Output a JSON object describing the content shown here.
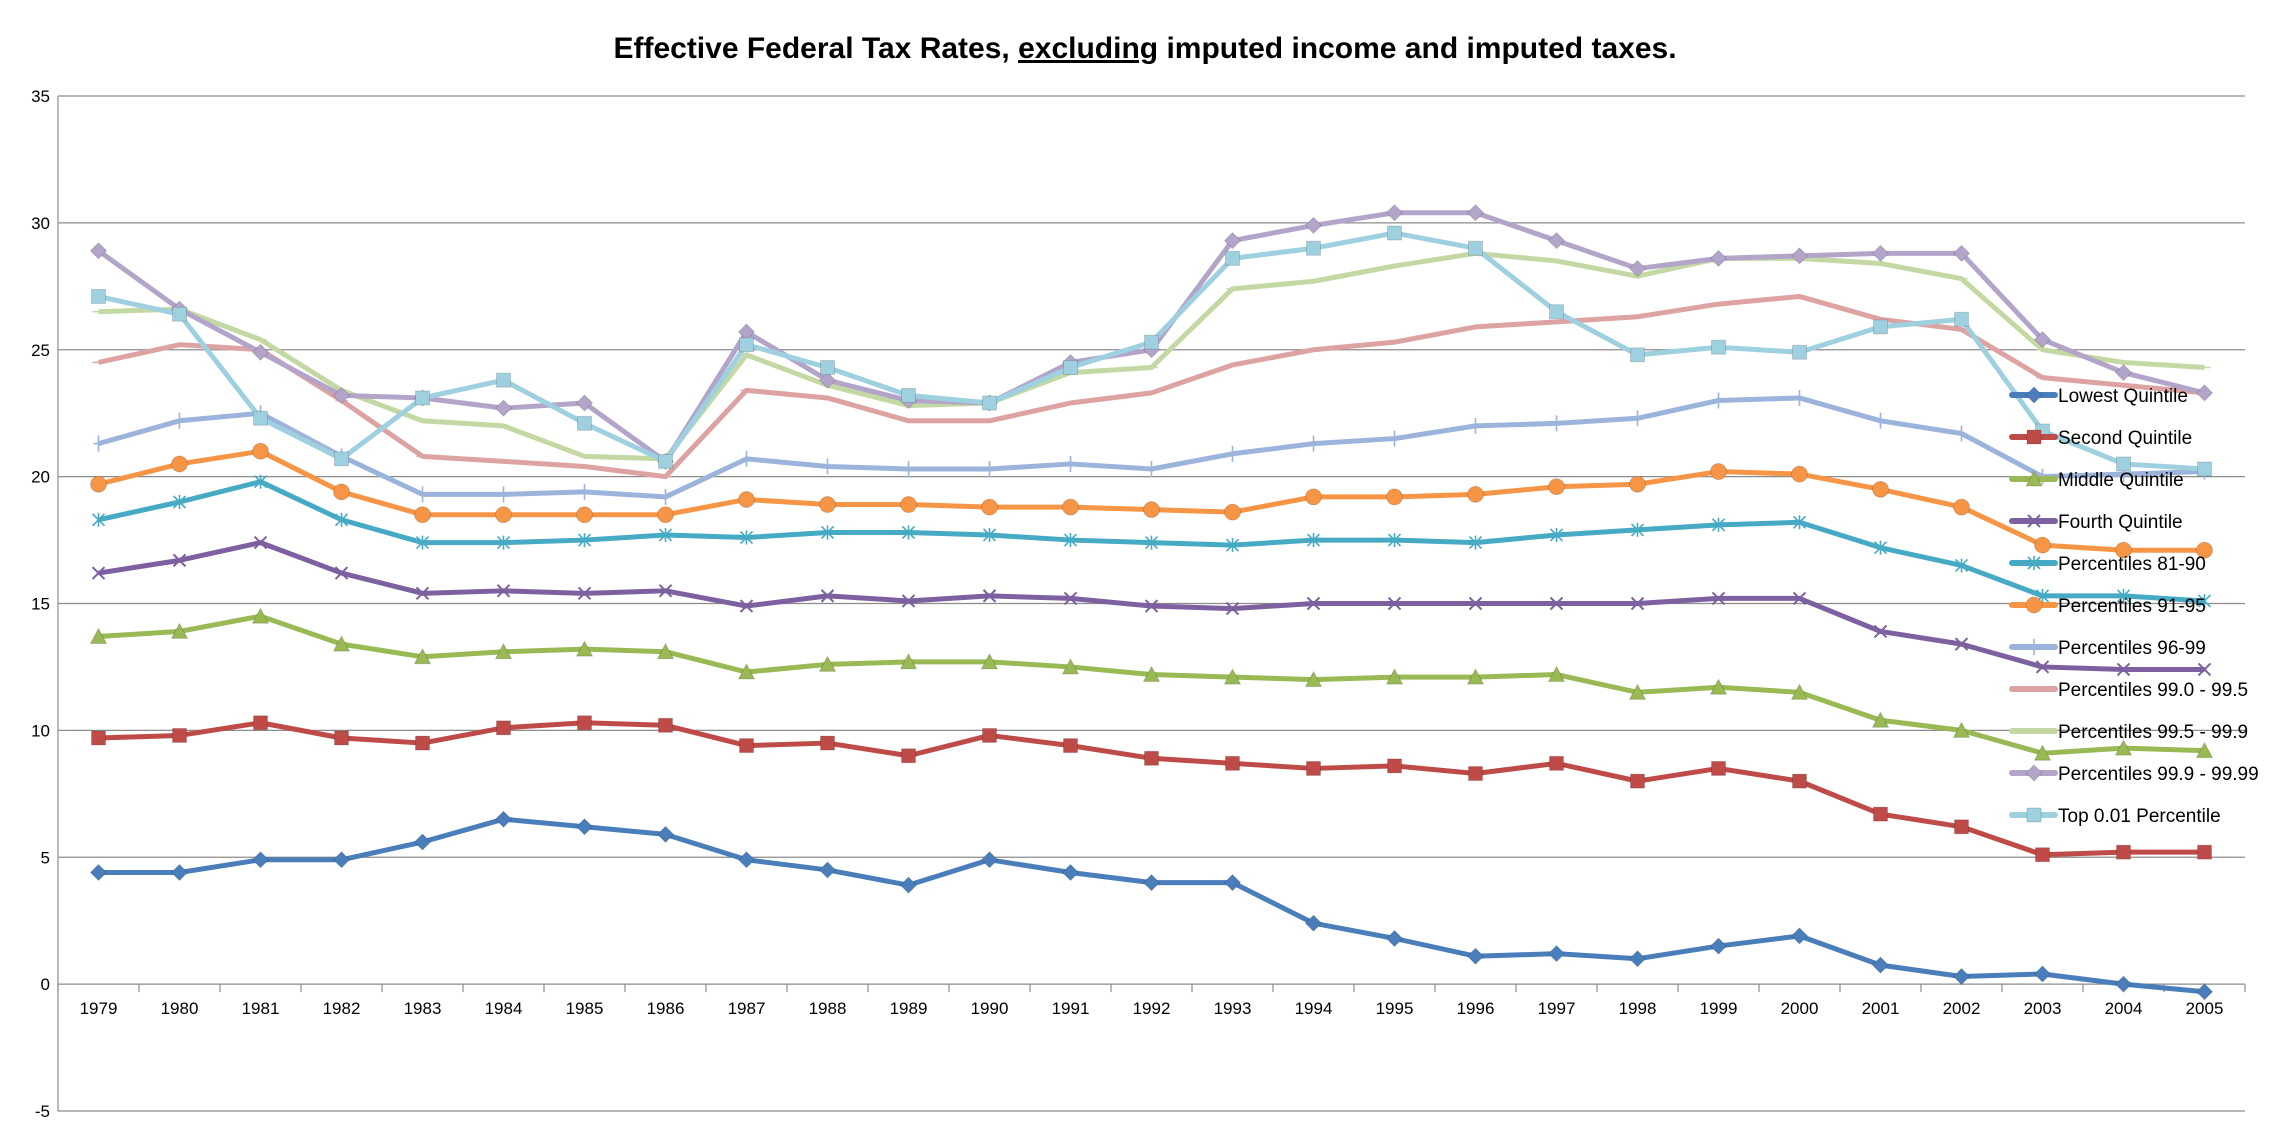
{
  "chart_data": {
    "type": "line",
    "title_parts": [
      "Effective Federal Tax Rates, ",
      "excluding",
      " imputed income and imputed taxes."
    ],
    "title_underlined_part": "excluding",
    "xlabel": "",
    "ylabel": "",
    "ylim": [
      -5,
      35
    ],
    "yticks": [
      "-5",
      "0",
      "5",
      "10",
      "15",
      "20",
      "25",
      "30",
      "35"
    ],
    "grid": "horizontal",
    "legend_position": "right",
    "categories": [
      "1979",
      "1980",
      "1981",
      "1982",
      "1983",
      "1984",
      "1985",
      "1986",
      "1987",
      "1988",
      "1989",
      "1990",
      "1991",
      "1992",
      "1993",
      "1994",
      "1995",
      "1996",
      "1997",
      "1998",
      "1999",
      "2000",
      "2001",
      "2002",
      "2003",
      "2004",
      "2005"
    ],
    "series": [
      {
        "name": "Lowest Quintile",
        "color": "#4a7ebb",
        "marker": "diamond",
        "values": [
          4.4,
          4.4,
          4.9,
          4.9,
          5.6,
          6.5,
          6.2,
          5.9,
          4.9,
          4.5,
          3.9,
          4.9,
          4.4,
          4.0,
          4.0,
          2.4,
          1.8,
          1.1,
          1.2,
          1.0,
          1.5,
          1.9,
          0.75,
          0.3,
          0.4,
          0.0,
          -0.3
        ]
      },
      {
        "name": "Second Quintile",
        "color": "#be4b48",
        "marker": "square",
        "values": [
          9.7,
          9.8,
          10.3,
          9.7,
          9.5,
          10.1,
          10.3,
          10.2,
          9.4,
          9.5,
          9.0,
          9.8,
          9.4,
          8.9,
          8.7,
          8.5,
          8.6,
          8.3,
          8.7,
          8.0,
          8.5,
          8.0,
          6.7,
          6.2,
          5.1,
          5.2,
          5.2
        ]
      },
      {
        "name": "Middle Quintile",
        "color": "#98b954",
        "marker": "triangle",
        "values": [
          13.7,
          13.9,
          14.5,
          13.4,
          12.9,
          13.1,
          13.2,
          13.1,
          12.3,
          12.6,
          12.7,
          12.7,
          12.5,
          12.2,
          12.1,
          12.0,
          12.1,
          12.1,
          12.2,
          11.5,
          11.7,
          11.5,
          10.4,
          10.0,
          9.1,
          9.3,
          9.2
        ]
      },
      {
        "name": "Fourth Quintile",
        "color": "#7d60a0",
        "marker": "x",
        "values": [
          16.2,
          16.7,
          17.4,
          16.2,
          15.4,
          15.5,
          15.4,
          15.5,
          14.9,
          15.3,
          15.1,
          15.3,
          15.2,
          14.9,
          14.8,
          15.0,
          15.0,
          15.0,
          15.0,
          15.0,
          15.2,
          15.2,
          13.9,
          13.4,
          12.5,
          12.4,
          12.4
        ]
      },
      {
        "name": "Percentiles 81-90",
        "color": "#46aac5",
        "marker": "asterisk",
        "values": [
          18.3,
          19.0,
          19.8,
          18.3,
          17.4,
          17.4,
          17.5,
          17.7,
          17.6,
          17.8,
          17.8,
          17.7,
          17.5,
          17.4,
          17.3,
          17.5,
          17.5,
          17.4,
          17.7,
          17.9,
          18.1,
          18.2,
          17.2,
          16.5,
          15.3,
          15.3,
          15.1
        ]
      },
      {
        "name": "Percentiles 91-95",
        "color": "#f69546",
        "marker": "circle",
        "values": [
          19.7,
          20.5,
          21.0,
          19.4,
          18.5,
          18.5,
          18.5,
          18.5,
          19.1,
          18.9,
          18.9,
          18.8,
          18.8,
          18.7,
          18.6,
          19.2,
          19.2,
          19.3,
          19.6,
          19.7,
          20.2,
          20.1,
          19.5,
          18.8,
          17.3,
          17.1,
          17.1
        ]
      },
      {
        "name": "Percentiles 96-99",
        "color": "#9cb4db",
        "marker": "plus",
        "values": [
          21.3,
          22.2,
          22.5,
          20.8,
          19.3,
          19.3,
          19.4,
          19.2,
          20.7,
          20.4,
          20.3,
          20.3,
          20.5,
          20.3,
          20.9,
          21.3,
          21.5,
          22.0,
          22.1,
          22.3,
          23.0,
          23.1,
          22.2,
          21.7,
          20.0,
          20.1,
          20.2
        ]
      },
      {
        "name": "Percentiles 99.0 - 99.5",
        "color": "#dda3a2",
        "marker": "dash",
        "values": [
          24.5,
          25.2,
          25.0,
          23.0,
          20.8,
          20.6,
          20.4,
          20.0,
          23.4,
          23.1,
          22.2,
          22.2,
          22.9,
          23.3,
          24.4,
          25.0,
          25.3,
          25.9,
          26.1,
          26.3,
          26.8,
          27.1,
          26.2,
          25.8,
          23.9,
          23.6,
          23.3
        ]
      },
      {
        "name": "Percentiles 99.5 - 99.9",
        "color": "#c4d8a3",
        "marker": "dash",
        "values": [
          26.5,
          26.6,
          25.4,
          23.4,
          22.2,
          22.0,
          20.8,
          20.7,
          24.8,
          23.6,
          22.8,
          22.9,
          24.1,
          24.3,
          27.4,
          27.7,
          28.3,
          28.8,
          28.5,
          27.9,
          28.6,
          28.6,
          28.4,
          27.8,
          25.0,
          24.5,
          24.3
        ]
      },
      {
        "name": "Percentiles 99.9 - 99.99",
        "color": "#b3a5c9",
        "marker": "diamond",
        "values": [
          28.9,
          26.6,
          24.9,
          23.2,
          23.1,
          22.7,
          22.9,
          20.6,
          25.7,
          23.8,
          23.0,
          22.9,
          24.5,
          25.0,
          29.3,
          29.9,
          30.4,
          30.4,
          29.3,
          28.2,
          28.6,
          28.7,
          28.8,
          28.8,
          25.4,
          24.1,
          23.3
        ]
      },
      {
        "name": "Top 0.01 Percentile",
        "color": "#9fd0e0",
        "marker": "square",
        "values": [
          27.1,
          26.4,
          22.3,
          20.7,
          23.1,
          23.8,
          22.1,
          20.6,
          25.2,
          24.3,
          23.2,
          22.9,
          24.3,
          25.3,
          28.6,
          29.0,
          29.6,
          29.0,
          26.5,
          24.8,
          25.1,
          24.9,
          25.9,
          26.2,
          21.8,
          20.5,
          20.3
        ]
      }
    ]
  }
}
